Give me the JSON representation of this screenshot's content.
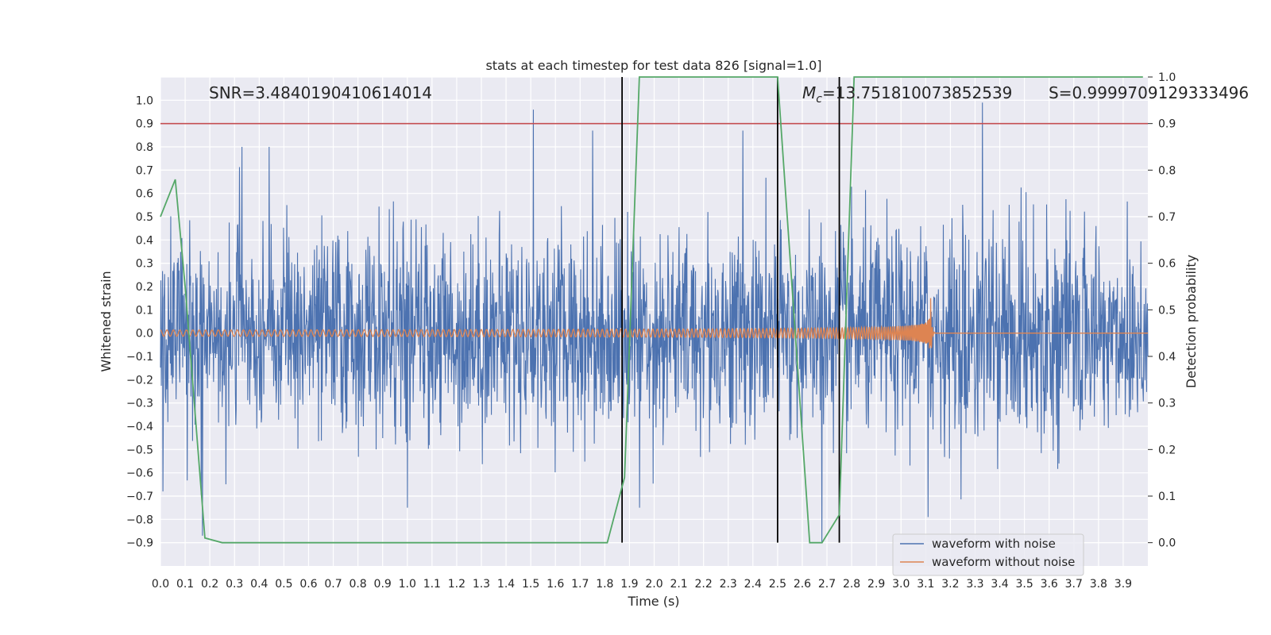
{
  "chart_data": {
    "type": "line",
    "title": "stats at each timestep for test data 826 [signal=1.0]",
    "xlabel": "Time (s)",
    "ylabel_left": "Whitened strain",
    "ylabel_right": "Detection probability",
    "xlim": [
      0.0,
      4.0
    ],
    "ylim_left": [
      -1.0,
      1.1
    ],
    "ylim_right": [
      -0.05,
      1.0
    ],
    "x_ticks": [
      "0.0",
      "0.1",
      "0.2",
      "0.3",
      "0.4",
      "0.5",
      "0.6",
      "0.7",
      "0.8",
      "0.9",
      "1.0",
      "1.1",
      "1.2",
      "1.3",
      "1.4",
      "1.5",
      "1.6",
      "1.7",
      "1.8",
      "1.9",
      "2.0",
      "2.1",
      "2.2",
      "2.3",
      "2.4",
      "2.5",
      "2.6",
      "2.7",
      "2.8",
      "2.9",
      "3.0",
      "3.1",
      "3.2",
      "3.3",
      "3.4",
      "3.5",
      "3.6",
      "3.7",
      "3.8",
      "3.9"
    ],
    "y_left_ticks": [
      "-0.9",
      "-0.8",
      "-0.7",
      "-0.6",
      "-0.5",
      "-0.4",
      "-0.3",
      "-0.2",
      "-0.1",
      "0.0",
      "0.1",
      "0.2",
      "0.3",
      "0.4",
      "0.5",
      "0.6",
      "0.7",
      "0.8",
      "0.9",
      "1.0"
    ],
    "y_right_ticks": [
      "0.0",
      "0.1",
      "0.2",
      "0.3",
      "0.4",
      "0.5",
      "0.6",
      "0.7",
      "0.8",
      "0.9",
      "1.0"
    ],
    "annotations": {
      "snr": "SNR=3.4840190410614014",
      "mc_symbol": "M",
      "mc_sub": "c",
      "mc_value": "=13.751810073852539",
      "s": "S=0.9999709129333496"
    },
    "threshold": {
      "axis": "right",
      "value": 0.9,
      "color": "#c44e52"
    },
    "vertical_lines": [
      1.87,
      2.5,
      2.75
    ],
    "series": [
      {
        "name": "waveform with noise",
        "color": "#4c72b0",
        "style": "noise",
        "sigma": 0.22,
        "peaks": [
          {
            "x": 1.51,
            "y": 0.96
          },
          {
            "x": 1.75,
            "y": 0.87
          },
          {
            "x": 2.36,
            "y": 0.87
          },
          {
            "x": 3.33,
            "y": 0.99
          },
          {
            "x": 0.33,
            "y": 0.8
          },
          {
            "x": 0.44,
            "y": 0.8
          },
          {
            "x": 0.17,
            "y": -0.87
          },
          {
            "x": 2.68,
            "y": -0.9
          },
          {
            "x": 1.94,
            "y": -0.75
          },
          {
            "x": 3.11,
            "y": -0.79
          },
          {
            "x": 0.01,
            "y": -0.68
          },
          {
            "x": 1.0,
            "y": -0.75
          }
        ]
      },
      {
        "name": "waveform without noise",
        "color": "#dd8452",
        "style": "chirp",
        "merger_time": 3.12,
        "peak_amplitude": 0.15
      },
      {
        "name": "detection probability",
        "color": "#55a868",
        "axis": "right",
        "x": [
          0.0,
          0.06,
          0.1,
          0.18,
          0.25,
          1.81,
          1.88,
          1.94,
          2.0,
          2.5,
          2.63,
          2.68,
          2.75,
          2.81,
          3.98
        ],
        "y": [
          0.7,
          0.78,
          0.55,
          0.01,
          0.0,
          0.0,
          0.14,
          1.0,
          1.0,
          1.0,
          0.0,
          0.0,
          0.06,
          1.0,
          1.0
        ],
        "show_in_legend": false
      }
    ],
    "legend": {
      "position": "lower-right",
      "entries": [
        "waveform with noise",
        "waveform without noise"
      ]
    }
  }
}
